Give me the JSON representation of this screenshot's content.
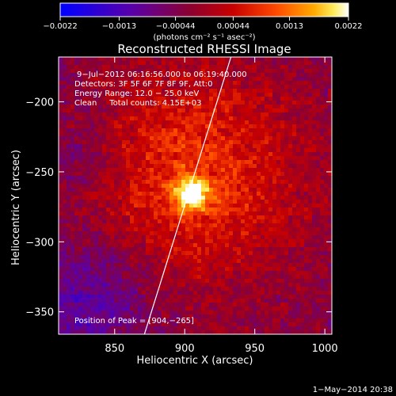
{
  "chart_data": {
    "type": "heatmap",
    "title": "Reconstructed RHESSI Image",
    "xlabel": "Heliocentric X (arcsec)",
    "ylabel": "Heliocentric Y (arcsec)",
    "xlim": [
      810,
      1005
    ],
    "ylim": [
      -366,
      -168
    ],
    "xticks": [
      850,
      900,
      950,
      1000
    ],
    "yticks": [
      -200,
      -250,
      -300,
      -350
    ],
    "xtick_labels": [
      "850",
      "900",
      "950",
      "1000"
    ],
    "ytick_labels": [
      "−200",
      "−250",
      "−300",
      "−350"
    ],
    "colorbar": {
      "range": [
        -0.0022,
        0.0022
      ],
      "tick_values": [
        -0.0022,
        -0.0013,
        -0.00044,
        0.00044,
        0.0013,
        0.0022
      ],
      "tick_labels": [
        "−0.0022",
        "−0.0013",
        "−0.00044",
        "0.00044",
        "0.0013",
        "0.0022"
      ],
      "unit_label": "(photons cm⁻² s⁻¹ asec⁻²)"
    },
    "annotations": [
      "9−Jul−2012 06:16:56.000 to 06:19:40.000",
      "Detectors: 3F 5F 6F 7F 8F 9F, Att:0",
      "Energy Range: 12.0 − 25.0 keV",
      "Clean     Total counts: 4.15E+03",
      "Position of Peak = [904,−265]"
    ],
    "peak": {
      "x": 904,
      "y": -265
    },
    "limb_line": [
      [
        870,
        -370
      ],
      [
        933,
        -168
      ]
    ],
    "footer": "1−May−2014 20:38"
  }
}
